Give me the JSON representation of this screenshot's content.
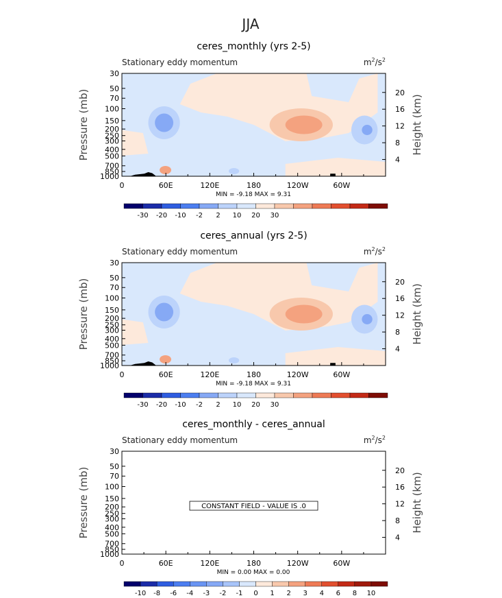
{
  "figure": {
    "title": "JJA"
  },
  "chart_data": [
    {
      "type": "heatmap",
      "title": "ceres_monthly (yrs 2-5)",
      "subtitle": "Stationary eddy momentum",
      "units_base": "m",
      "units_exp": "2",
      "units_sep": "/s",
      "units_exp2": "2",
      "ylabel": "Pressure (mb)",
      "ylabel_right": "Height (km)",
      "x_ticks": [
        "0",
        "60E",
        "120E",
        "180",
        "120W",
        "60W"
      ],
      "y_ticks": [
        "30",
        "50",
        "70",
        "100",
        "150",
        "200",
        "250",
        "300",
        "400",
        "500",
        "700",
        "850",
        "1000"
      ],
      "y_ticks_right": [
        "20",
        "16",
        "12",
        "8",
        "4"
      ],
      "minmax": "MIN =    -9.18   MAX =     9.31",
      "colorbar_labels": [
        "-30",
        "-20",
        "-10",
        "-2",
        "2",
        "10",
        "20",
        "30"
      ],
      "colorbar_colors": [
        "#03006b",
        "#1b2ca8",
        "#2f5de0",
        "#4c7ef0",
        "#86a9f5",
        "#bcd3fb",
        "#d9e8fc",
        "#fde9db",
        "#f8c8ac",
        "#f4a27f",
        "#ee7a55",
        "#e24f2f",
        "#c32a16",
        "#7e0d05"
      ],
      "features": [
        {
          "lon": 35,
          "p": 170,
          "value": -9.18
        },
        {
          "lon": 245,
          "p": 160,
          "value": 9.31
        },
        {
          "lon": 330,
          "p": 200,
          "value": -8.0
        }
      ]
    },
    {
      "type": "heatmap",
      "title": "ceres_annual (yrs 2-5)",
      "subtitle": "Stationary eddy momentum",
      "units_base": "m",
      "units_exp": "2",
      "units_sep": "/s",
      "units_exp2": "2",
      "ylabel": "Pressure (mb)",
      "ylabel_right": "Height (km)",
      "x_ticks": [
        "0",
        "60E",
        "120E",
        "180",
        "120W",
        "60W"
      ],
      "y_ticks": [
        "30",
        "50",
        "70",
        "100",
        "150",
        "200",
        "250",
        "300",
        "400",
        "500",
        "700",
        "850",
        "1000"
      ],
      "y_ticks_right": [
        "20",
        "16",
        "12",
        "8",
        "4"
      ],
      "minmax": "MIN =    -9.18   MAX =     9.31",
      "colorbar_labels": [
        "-30",
        "-20",
        "-10",
        "-2",
        "2",
        "10",
        "20",
        "30"
      ],
      "colorbar_colors": [
        "#03006b",
        "#1b2ca8",
        "#2f5de0",
        "#4c7ef0",
        "#86a9f5",
        "#bcd3fb",
        "#d9e8fc",
        "#fde9db",
        "#f8c8ac",
        "#f4a27f",
        "#ee7a55",
        "#e24f2f",
        "#c32a16",
        "#7e0d05"
      ],
      "features": [
        {
          "lon": 35,
          "p": 170,
          "value": -9.18
        },
        {
          "lon": 245,
          "p": 160,
          "value": 9.31
        },
        {
          "lon": 330,
          "p": 200,
          "value": -8.0
        }
      ]
    },
    {
      "type": "heatmap",
      "title": "ceres_monthly - ceres_annual",
      "subtitle": "Stationary eddy momentum",
      "units_base": "m",
      "units_exp": "2",
      "units_sep": "/s",
      "units_exp2": "2",
      "ylabel": "Pressure (mb)",
      "ylabel_right": "Height (km)",
      "x_ticks": [
        "0",
        "60E",
        "120E",
        "180",
        "120W",
        "60W"
      ],
      "y_ticks": [
        "30",
        "50",
        "70",
        "100",
        "150",
        "200",
        "250",
        "300",
        "400",
        "500",
        "700",
        "850",
        "1000"
      ],
      "y_ticks_right": [
        "20",
        "16",
        "12",
        "8",
        "4"
      ],
      "minmax": "MIN =     0.00   MAX =     0.00",
      "annotation": "CONSTANT FIELD - VALUE IS .0",
      "colorbar_labels": [
        "-10",
        "-8",
        "-6",
        "-4",
        "-3",
        "-2",
        "-1",
        "0",
        "1",
        "2",
        "3",
        "4",
        "6",
        "8",
        "10"
      ],
      "colorbar_colors": [
        "#03006b",
        "#1b2ca8",
        "#2f5de0",
        "#4c7ef0",
        "#6a95f3",
        "#86a9f5",
        "#a8c4f9",
        "#d9e8fc",
        "#fde9db",
        "#f8c8ac",
        "#f4a27f",
        "#ee7a55",
        "#e24f2f",
        "#c32a16",
        "#a01a0c",
        "#7e0d05"
      ]
    }
  ]
}
